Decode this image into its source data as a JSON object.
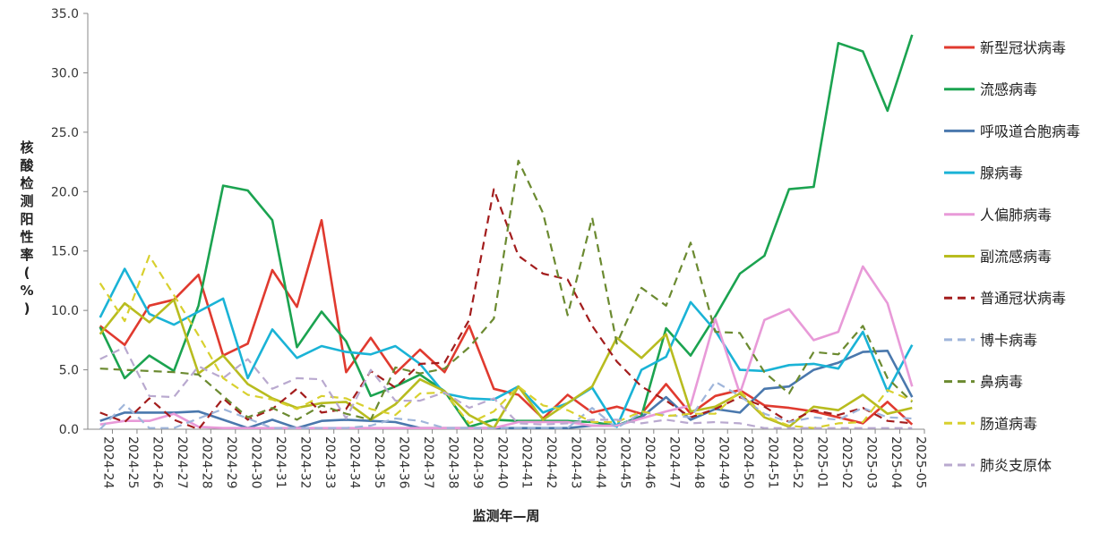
{
  "chart_data": {
    "type": "line",
    "title": "",
    "xlabel": "监测年—周",
    "ylabel": "核酸检测阳性率(%)",
    "ylim": [
      0,
      35
    ],
    "y_ticks": [
      "0.0",
      "5.0",
      "10.0",
      "15.0",
      "20.0",
      "25.0",
      "30.0",
      "35.0"
    ],
    "grid": false,
    "legend_position": "right",
    "categories": [
      "2024-24",
      "2024-25",
      "2024-26",
      "2024-27",
      "2024-28",
      "2024-29",
      "2024-30",
      "2024-31",
      "2024-32",
      "2024-33",
      "2024-34",
      "2024-35",
      "2024-36",
      "2024-37",
      "2024-38",
      "2024-39",
      "2024-40",
      "2024-41",
      "2024-42",
      "2024-43",
      "2024-44",
      "2024-45",
      "2024-46",
      "2024-47",
      "2024-48",
      "2024-49",
      "2024-50",
      "2024-51",
      "2024-52",
      "2025-01",
      "2025-02",
      "2025-03",
      "2025-04",
      "2025-05"
    ],
    "series": [
      {
        "name": "新型冠状病毒",
        "color": "#e03a2f",
        "dash": false,
        "values": [
          8.7,
          7.1,
          10.4,
          10.9,
          13.0,
          6.2,
          7.2,
          13.4,
          10.3,
          17.6,
          4.8,
          7.7,
          4.7,
          6.7,
          4.8,
          8.7,
          3.4,
          2.9,
          0.9,
          2.9,
          1.4,
          1.9,
          1.3,
          3.8,
          1.3,
          2.8,
          3.3,
          2.0,
          1.8,
          1.5,
          1.0,
          0.5,
          2.3,
          0.4
        ]
      },
      {
        "name": "流感病毒",
        "color": "#1ba350",
        "dash": false,
        "values": [
          8.6,
          4.3,
          6.2,
          4.9,
          10.4,
          20.5,
          20.1,
          17.6,
          6.9,
          9.9,
          7.4,
          2.8,
          3.6,
          4.6,
          3.2,
          0.2,
          0.8,
          0.7,
          0.7,
          0.7,
          0.6,
          0.3,
          1.1,
          8.5,
          6.2,
          9.5,
          13.1,
          14.6,
          20.2,
          20.4,
          32.5,
          31.8,
          26.8,
          33.2
        ]
      },
      {
        "name": "呼吸道合胞病毒",
        "color": "#4a78ad",
        "dash": false,
        "values": [
          0.7,
          1.4,
          1.4,
          1.4,
          1.5,
          0.8,
          0.1,
          0.8,
          0.1,
          0.7,
          0.8,
          0.7,
          0.6,
          0.1,
          0.1,
          0.1,
          0.1,
          0.1,
          0.1,
          0.1,
          0.3,
          0.3,
          1.0,
          2.7,
          0.8,
          1.7,
          1.4,
          3.4,
          3.6,
          5.0,
          5.6,
          6.5,
          6.6,
          2.7
        ]
      },
      {
        "name": "腺病毒",
        "color": "#1ab3d6",
        "dash": false,
        "values": [
          9.4,
          13.5,
          9.7,
          8.8,
          9.9,
          11.0,
          4.3,
          8.4,
          6.0,
          7.0,
          6.5,
          6.3,
          7.0,
          5.5,
          3.0,
          2.6,
          2.5,
          3.6,
          1.4,
          2.2,
          3.5,
          0.2,
          5.0,
          6.1,
          10.7,
          8.3,
          5.0,
          4.9,
          5.4,
          5.5,
          5.1,
          8.2,
          3.2,
          7.1
        ]
      },
      {
        "name": "人偏肺病毒",
        "color": "#e89ad8",
        "dash": false,
        "values": [
          0.4,
          0.7,
          0.7,
          1.3,
          0.2,
          0.1,
          0.1,
          0.1,
          0.1,
          0.1,
          0.1,
          0.1,
          0.1,
          0.1,
          0.1,
          0.1,
          0.1,
          0.6,
          0.6,
          0.6,
          0.3,
          0.3,
          0.9,
          1.5,
          2.0,
          9.3,
          3.0,
          9.2,
          10.1,
          7.5,
          8.2,
          13.7,
          10.6,
          3.6
        ]
      },
      {
        "name": "副流感病毒",
        "color": "#b8bc1f",
        "dash": false,
        "values": [
          8.0,
          10.6,
          9.0,
          10.9,
          4.7,
          6.2,
          3.8,
          2.6,
          1.8,
          2.2,
          2.3,
          0.8,
          2.1,
          4.2,
          3.2,
          1.2,
          0.1,
          3.6,
          0.8,
          2.2,
          3.6,
          7.7,
          6.0,
          8.0,
          1.5,
          1.9,
          3.0,
          1.0,
          0.2,
          1.9,
          1.6,
          2.9,
          1.3,
          1.8
        ]
      },
      {
        "name": "普通冠状病毒",
        "color": "#a31d1d",
        "dash": true,
        "values": [
          1.4,
          0.6,
          2.6,
          0.8,
          0.0,
          2.6,
          0.8,
          1.7,
          3.4,
          1.4,
          1.7,
          4.9,
          3.5,
          5.5,
          5.6,
          9.2,
          20.2,
          14.6,
          13.1,
          12.6,
          8.7,
          5.7,
          3.6,
          2.4,
          1.0,
          1.7,
          2.7,
          1.9,
          0.6,
          1.6,
          1.2,
          1.8,
          0.7,
          0.5
        ]
      },
      {
        "name": "博卡病毒",
        "color": "#9fb5da",
        "dash": true,
        "values": [
          0.0,
          2.1,
          0.1,
          0.1,
          0.9,
          1.7,
          0.9,
          0.1,
          0.1,
          0.1,
          0.1,
          0.3,
          0.9,
          0.7,
          0.1,
          0.1,
          0.1,
          0.1,
          0.1,
          0.1,
          1.8,
          0.1,
          1.4,
          1.2,
          1.0,
          4.0,
          2.8,
          1.3,
          0.6,
          1.0,
          0.8,
          1.8,
          1.0,
          0.9
        ]
      },
      {
        "name": "鼻病毒",
        "color": "#6b8a30",
        "dash": true,
        "values": [
          5.1,
          5.0,
          4.9,
          4.8,
          4.6,
          2.8,
          1.0,
          1.8,
          0.8,
          2.0,
          1.3,
          0.8,
          5.2,
          4.7,
          5.1,
          6.9,
          9.3,
          22.6,
          18.2,
          9.6,
          17.8,
          7.2,
          11.9,
          10.4,
          15.7,
          8.2,
          8.1,
          4.8,
          3.0,
          6.5,
          6.3,
          8.7,
          4.3,
          2.3
        ]
      },
      {
        "name": "肠道病毒",
        "color": "#d8d02e",
        "dash": true,
        "values": [
          12.3,
          9.1,
          14.6,
          11.3,
          7.9,
          4.3,
          2.9,
          2.5,
          1.7,
          2.8,
          2.6,
          1.7,
          1.2,
          3.0,
          3.1,
          0.5,
          1.5,
          3.6,
          2.0,
          1.6,
          0.6,
          0.6,
          1.5,
          1.1,
          1.3,
          1.3,
          3.2,
          1.1,
          0.3,
          0.1,
          0.5,
          0.6,
          3.3,
          2.4
        ]
      },
      {
        "name": "肺炎支原体",
        "color": "#b9a9cf",
        "dash": true,
        "values": [
          5.9,
          6.9,
          2.8,
          2.7,
          5.3,
          4.3,
          5.9,
          3.4,
          4.3,
          4.2,
          0.9,
          5.0,
          2.4,
          2.4,
          3.1,
          1.8,
          2.6,
          0.5,
          0.4,
          0.5,
          0.8,
          0.8,
          0.5,
          0.8,
          0.5,
          0.6,
          0.5,
          0.1,
          0.1,
          0.1,
          0.1,
          0.1,
          0.1,
          0.1
        ]
      }
    ]
  }
}
